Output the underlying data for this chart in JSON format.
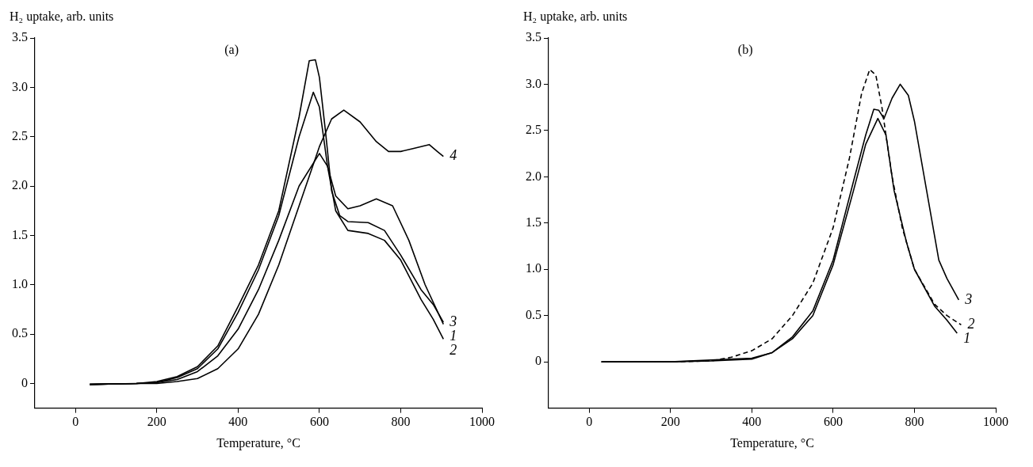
{
  "chart_data": [
    {
      "type": "line",
      "title": "(a)",
      "xlabel": "Temperature, °C",
      "ylabel": "H₂ uptake, arb. units",
      "xlim": [
        -100,
        1000
      ],
      "ylim": [
        -0.25,
        3.5
      ],
      "xticks": [
        0,
        200,
        400,
        600,
        800,
        1000
      ],
      "yticks": [
        0,
        {
          "value": 0.5,
          "label": "0.5"
        },
        {
          "value": 1,
          "label": "1.0"
        },
        {
          "value": 1.5,
          "label": "1.5"
        },
        {
          "value": 2,
          "label": "2.0"
        },
        {
          "value": 2.5,
          "label": "2.5"
        },
        {
          "value": 3,
          "label": "3.0"
        },
        {
          "value": 3.5,
          "label": "3.5"
        }
      ],
      "grid": false,
      "marker": "none",
      "line_style": "solid",
      "series": [
        {
          "name": "1",
          "color": "#000000",
          "x": [
            35,
            150,
            200,
            250,
            300,
            350,
            400,
            450,
            500,
            550,
            600,
            620,
            640,
            670,
            700,
            740,
            780,
            820,
            860,
            905
          ],
          "values": [
            -0.01,
            0,
            0.01,
            0.04,
            0.12,
            0.28,
            0.55,
            0.95,
            1.45,
            2.0,
            2.33,
            2.2,
            1.9,
            1.77,
            1.8,
            1.87,
            1.8,
            1.45,
            1.0,
            0.6
          ]
        },
        {
          "name": "2",
          "color": "#000000",
          "x": [
            35,
            150,
            200,
            250,
            300,
            350,
            400,
            450,
            500,
            550,
            585,
            600,
            620,
            640,
            670,
            720,
            760,
            800,
            850,
            880,
            905
          ],
          "values": [
            -0.01,
            0,
            0.01,
            0.06,
            0.15,
            0.35,
            0.72,
            1.15,
            1.7,
            2.5,
            2.95,
            2.8,
            2.2,
            1.75,
            1.55,
            1.52,
            1.45,
            1.25,
            0.85,
            0.65,
            0.45
          ]
        },
        {
          "name": "3",
          "color": "#000000",
          "x": [
            35,
            150,
            200,
            250,
            300,
            350,
            400,
            450,
            500,
            550,
            575,
            590,
            600,
            615,
            630,
            650,
            670,
            720,
            760,
            800,
            850,
            880,
            905
          ],
          "values": [
            -0.01,
            0,
            0.02,
            0.07,
            0.17,
            0.38,
            0.78,
            1.2,
            1.75,
            2.7,
            3.27,
            3.28,
            3.1,
            2.55,
            1.95,
            1.7,
            1.64,
            1.63,
            1.55,
            1.3,
            0.95,
            0.8,
            0.62
          ]
        },
        {
          "name": "4",
          "color": "#000000",
          "x": [
            35,
            150,
            200,
            250,
            300,
            350,
            400,
            450,
            500,
            550,
            600,
            630,
            660,
            700,
            740,
            770,
            800,
            830,
            870,
            890,
            905
          ],
          "values": [
            -0.01,
            0,
            0,
            0.02,
            0.05,
            0.15,
            0.35,
            0.7,
            1.2,
            1.8,
            2.4,
            2.68,
            2.77,
            2.65,
            2.45,
            2.35,
            2.35,
            2.38,
            2.42,
            2.35,
            2.3
          ]
        }
      ]
    },
    {
      "type": "line",
      "title": "(b)",
      "xlabel": "Temperature, °C",
      "ylabel": "H₂ uptake, arb. units",
      "xlim": [
        -100,
        1000
      ],
      "ylim": [
        -0.5,
        3.5
      ],
      "xticks": [
        0,
        200,
        400,
        600,
        800,
        1000
      ],
      "yticks": [
        0,
        {
          "value": 0.5,
          "label": "0.5"
        },
        {
          "value": 1,
          "label": "1.0"
        },
        {
          "value": 1.5,
          "label": "1.5"
        },
        {
          "value": 2,
          "label": "2.0"
        },
        {
          "value": 2.5,
          "label": "2.5"
        },
        {
          "value": 3,
          "label": "3.0"
        },
        {
          "value": 3.5,
          "label": "3.5"
        }
      ],
      "grid": false,
      "marker": "none",
      "series": [
        {
          "name": "1",
          "color": "#000000",
          "line_style": "solid",
          "x": [
            30,
            200,
            300,
            400,
            450,
            500,
            550,
            600,
            650,
            680,
            710,
            730,
            750,
            780,
            800,
            850,
            880,
            905
          ],
          "values": [
            0,
            0,
            0.01,
            0.03,
            0.1,
            0.25,
            0.5,
            1.05,
            1.85,
            2.35,
            2.63,
            2.45,
            1.85,
            1.3,
            1.0,
            0.6,
            0.45,
            0.31
          ]
        },
        {
          "name": "2",
          "color": "#000000",
          "line_style": "dashed",
          "x": [
            30,
            200,
            300,
            350,
            400,
            450,
            500,
            550,
            600,
            640,
            670,
            690,
            705,
            720,
            745,
            770,
            800,
            850,
            880,
            915
          ],
          "values": [
            0,
            0,
            0.01,
            0.05,
            0.12,
            0.25,
            0.5,
            0.85,
            1.45,
            2.2,
            2.9,
            3.16,
            3.1,
            2.75,
            2.0,
            1.45,
            1.0,
            0.62,
            0.5,
            0.4
          ]
        },
        {
          "name": "3",
          "color": "#000000",
          "line_style": "solid",
          "x": [
            30,
            200,
            300,
            400,
            450,
            500,
            550,
            600,
            650,
            680,
            700,
            712,
            725,
            745,
            765,
            785,
            800,
            830,
            860,
            880,
            909
          ],
          "values": [
            0,
            0,
            0.02,
            0.04,
            0.1,
            0.27,
            0.55,
            1.1,
            1.95,
            2.45,
            2.73,
            2.72,
            2.63,
            2.85,
            3.0,
            2.88,
            2.6,
            1.85,
            1.1,
            0.9,
            0.67
          ]
        }
      ]
    }
  ]
}
